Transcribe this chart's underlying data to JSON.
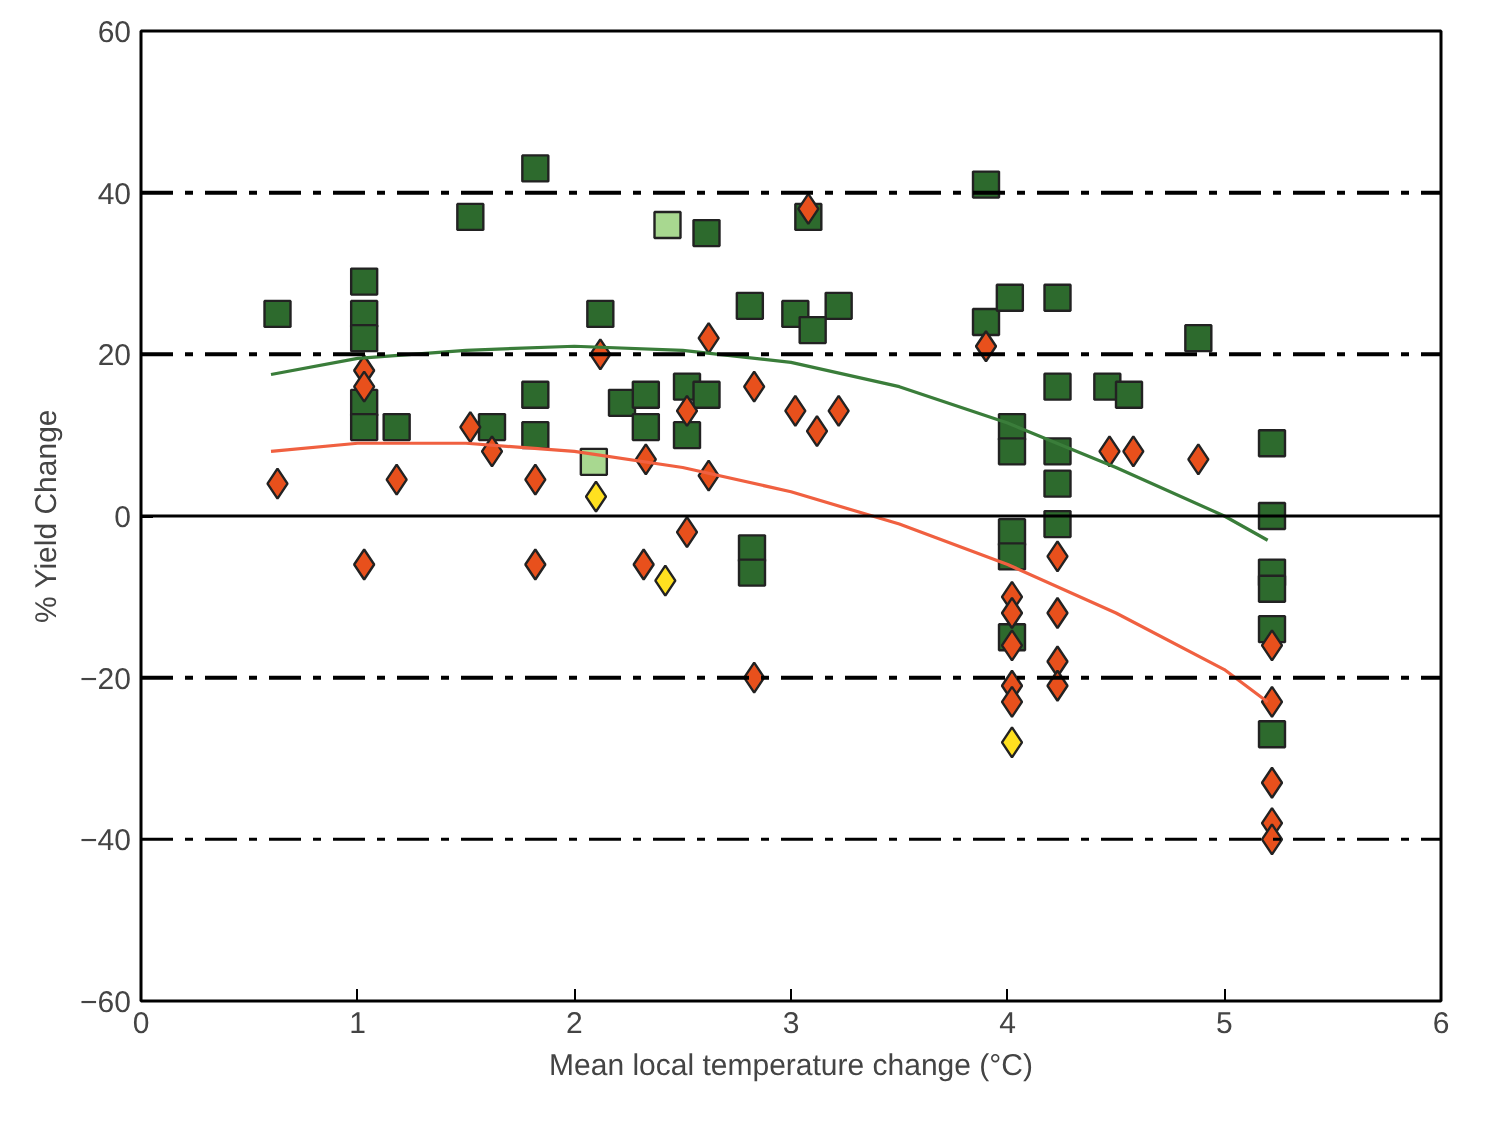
{
  "chart_data": {
    "type": "scatter",
    "xlabel": "Mean local temperature change (°C)",
    "ylabel": "% Yield Change",
    "xlim": [
      0,
      6
    ],
    "ylim": [
      -60,
      60
    ],
    "xticks": [
      0,
      1,
      2,
      3,
      4,
      5,
      6
    ],
    "yticks": [
      -60,
      -40,
      -20,
      0,
      20,
      40,
      60
    ],
    "grid": false,
    "series": [
      {
        "marker": "square",
        "color": "#2d6a2d",
        "x": [
          0.63,
          1.03,
          1.03,
          1.03,
          1.03,
          1.03,
          1.18,
          1.52,
          1.82,
          1.62,
          1.82,
          1.82,
          2.12,
          2.61,
          2.81,
          3.02,
          3.22,
          3.1,
          3.08,
          3.9,
          3.9,
          4.01,
          2.22,
          2.33,
          2.33,
          2.52,
          2.61,
          2.52,
          2.82,
          2.82,
          4.23,
          4.88,
          4.23,
          4.46,
          4.56,
          4.02,
          4.02,
          4.23,
          4.23,
          4.23,
          4.02,
          4.02,
          4.02,
          5.22,
          5.22,
          5.22,
          5.22,
          5.22,
          5.22
        ],
        "values": [
          25,
          29,
          25,
          22,
          14,
          11,
          11,
          37,
          43,
          11,
          15,
          10,
          25,
          35,
          26,
          25,
          26,
          23,
          37,
          41,
          24,
          27,
          14,
          15,
          11,
          16,
          15,
          10,
          -4,
          -7,
          27,
          22,
          16,
          16,
          15,
          11,
          8,
          8,
          4,
          -1,
          -2,
          -5,
          -15,
          9,
          0,
          -7,
          -9,
          -14,
          -27
        ]
      },
      {
        "marker": "diamond",
        "color": "#e8501c",
        "x": [
          0.63,
          1.03,
          1.03,
          1.18,
          1.03,
          1.52,
          1.62,
          1.82,
          1.82,
          2.12,
          2.62,
          3.08,
          3.9,
          2.52,
          2.83,
          3.02,
          3.12,
          3.22,
          2.33,
          2.62,
          2.52,
          2.32,
          2.83,
          4.47,
          4.58,
          4.88,
          4.02,
          4.02,
          4.02,
          4.02,
          4.02,
          4.23,
          4.23,
          4.23,
          4.23,
          5.22,
          5.22,
          5.22,
          5.22,
          5.22
        ],
        "values": [
          4,
          18,
          16,
          4.5,
          -6,
          11,
          8,
          4.5,
          -6,
          20,
          22,
          38,
          21,
          13,
          16,
          13,
          10.5,
          13,
          7,
          5,
          -2,
          -6,
          -20,
          8,
          8,
          7,
          -10,
          -12,
          -16,
          -21,
          -23,
          -5,
          -12,
          -18,
          -21,
          -16,
          -23,
          -33,
          -38,
          -40
        ]
      },
      {
        "marker": "square",
        "color": "#a8d890",
        "x": [
          2.09,
          2.43
        ],
        "values": [
          6.7,
          36
        ]
      },
      {
        "marker": "diamond",
        "color": "#ffe020",
        "x": [
          2.1,
          2.42,
          4.02
        ],
        "values": [
          2.4,
          -8,
          -28
        ]
      },
      {
        "type": "line",
        "color": "#3a7d3a",
        "x": [
          0.6,
          1.0,
          1.5,
          2.0,
          2.5,
          3.0,
          3.5,
          4.0,
          4.5,
          5.0,
          5.2
        ],
        "values": [
          17.5,
          19.5,
          20.5,
          21,
          20.5,
          19,
          16,
          11.5,
          6,
          0,
          -3
        ]
      },
      {
        "type": "line",
        "color": "#f06040",
        "x": [
          0.6,
          1.0,
          1.5,
          2.0,
          2.5,
          3.0,
          3.5,
          4.0,
          4.5,
          5.0,
          5.2
        ],
        "values": [
          8,
          9,
          9,
          8,
          6,
          3,
          -1,
          -6,
          -12,
          -19,
          -23
        ]
      }
    ],
    "ref_lines": [
      {
        "axis": "y",
        "value": 40,
        "line_style": "dashed",
        "color": "#000000"
      },
      {
        "axis": "y",
        "value": 20,
        "line_style": "dashed",
        "color": "#000000"
      },
      {
        "axis": "y",
        "value": 0,
        "line_style": "solid",
        "color": "#000000"
      },
      {
        "axis": "y",
        "value": -20,
        "line_style": "dashed",
        "color": "#000000"
      },
      {
        "axis": "y",
        "value": -40,
        "line_style": "dashed",
        "color": "#000000"
      }
    ]
  }
}
